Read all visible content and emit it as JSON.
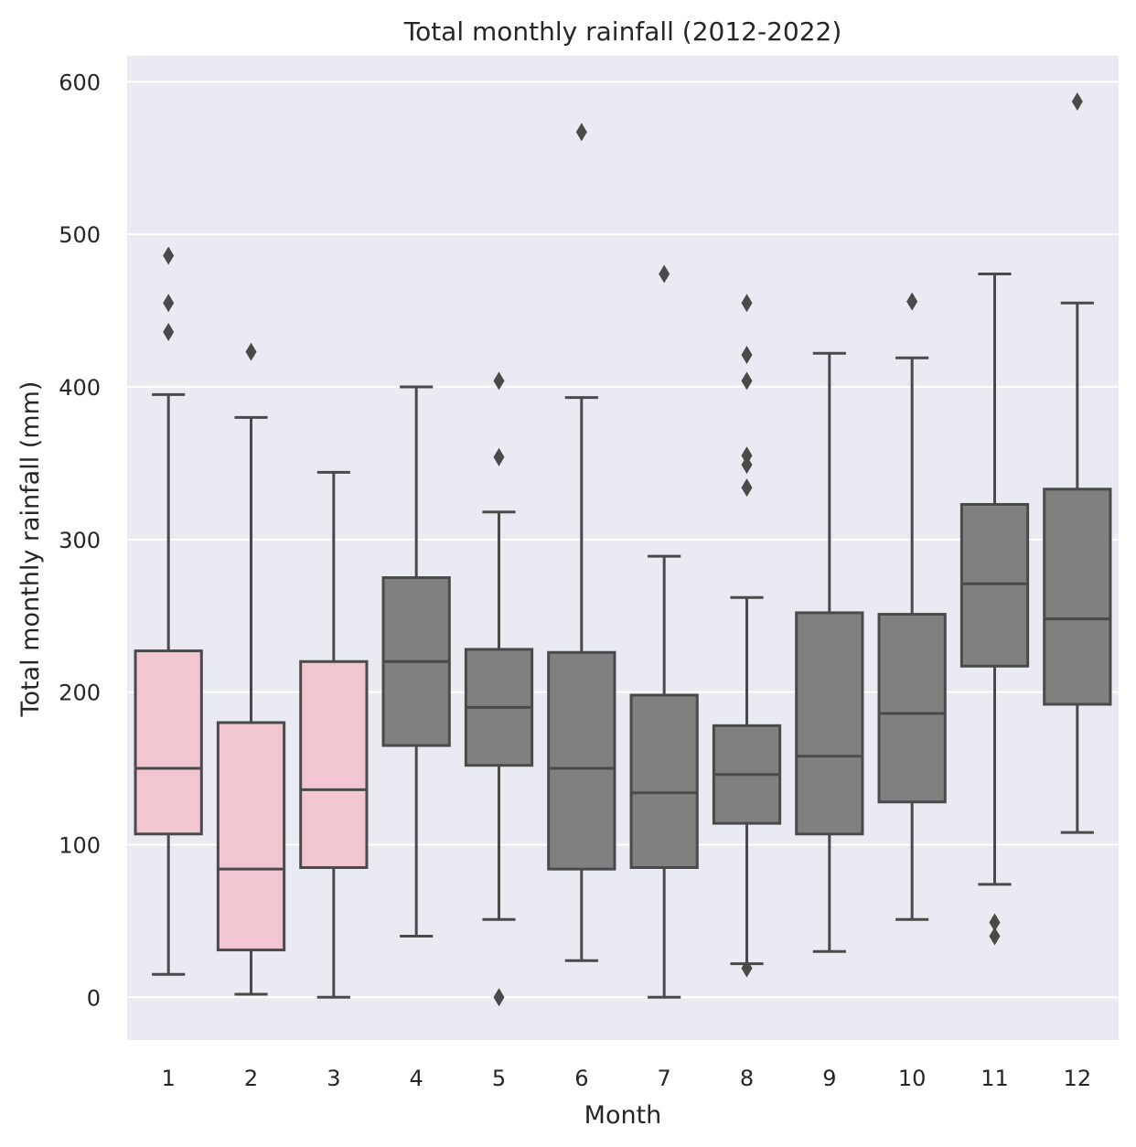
{
  "chart_data": {
    "type": "box",
    "title": "Total monthly rainfall (2012-2022)",
    "xlabel": "Month",
    "ylabel": "Total monthly rainfall (mm)",
    "ylim": [
      -28,
      617
    ],
    "yticks": [
      0,
      100,
      200,
      300,
      400,
      500,
      600
    ],
    "grid": true,
    "colors": {
      "background": "#eaeaf2",
      "grid": "#ffffff",
      "box_highlight": "#f2c6d0",
      "box_default": "#808080",
      "line": "#4a4a4a"
    },
    "categories": [
      "1",
      "2",
      "3",
      "4",
      "5",
      "6",
      "7",
      "8",
      "9",
      "10",
      "11",
      "12"
    ],
    "boxes": [
      {
        "month": "1",
        "whisker_low": 15,
        "q1": 107,
        "median": 150,
        "q3": 227,
        "whisker_high": 395,
        "outliers": [
          436,
          455,
          486
        ],
        "color": "#f2c6d0"
      },
      {
        "month": "2",
        "whisker_low": 2,
        "q1": 31,
        "median": 84,
        "q3": 180,
        "whisker_high": 380,
        "outliers": [
          423
        ],
        "color": "#f2c6d0"
      },
      {
        "month": "3",
        "whisker_low": 0,
        "q1": 85,
        "median": 136,
        "q3": 220,
        "whisker_high": 344,
        "outliers": [],
        "color": "#f2c6d0"
      },
      {
        "month": "4",
        "whisker_low": 40,
        "q1": 165,
        "median": 220,
        "q3": 275,
        "whisker_high": 400,
        "outliers": [],
        "color": "#808080"
      },
      {
        "month": "5",
        "whisker_low": 51,
        "q1": 152,
        "median": 190,
        "q3": 228,
        "whisker_high": 318,
        "outliers": [
          0,
          354,
          404
        ],
        "color": "#808080"
      },
      {
        "month": "6",
        "whisker_low": 24,
        "q1": 84,
        "median": 150,
        "q3": 226,
        "whisker_high": 393,
        "outliers": [
          567
        ],
        "color": "#808080"
      },
      {
        "month": "7",
        "whisker_low": 0,
        "q1": 85,
        "median": 134,
        "q3": 198,
        "whisker_high": 289,
        "outliers": [
          474
        ],
        "color": "#808080"
      },
      {
        "month": "8",
        "whisker_low": 22,
        "q1": 114,
        "median": 146,
        "q3": 178,
        "whisker_high": 262,
        "outliers": [
          19,
          334,
          349,
          355,
          404,
          421,
          455
        ],
        "color": "#808080"
      },
      {
        "month": "9",
        "whisker_low": 30,
        "q1": 107,
        "median": 158,
        "q3": 252,
        "whisker_high": 422,
        "outliers": [],
        "color": "#808080"
      },
      {
        "month": "10",
        "whisker_low": 51,
        "q1": 128,
        "median": 186,
        "q3": 251,
        "whisker_high": 419,
        "outliers": [
          456
        ],
        "color": "#808080"
      },
      {
        "month": "11",
        "whisker_low": 74,
        "q1": 217,
        "median": 271,
        "q3": 323,
        "whisker_high": 474,
        "outliers": [
          40,
          49
        ],
        "color": "#808080"
      },
      {
        "month": "12",
        "whisker_low": 108,
        "q1": 192,
        "median": 248,
        "q3": 333,
        "whisker_high": 455,
        "outliers": [
          587
        ],
        "color": "#808080"
      }
    ]
  }
}
